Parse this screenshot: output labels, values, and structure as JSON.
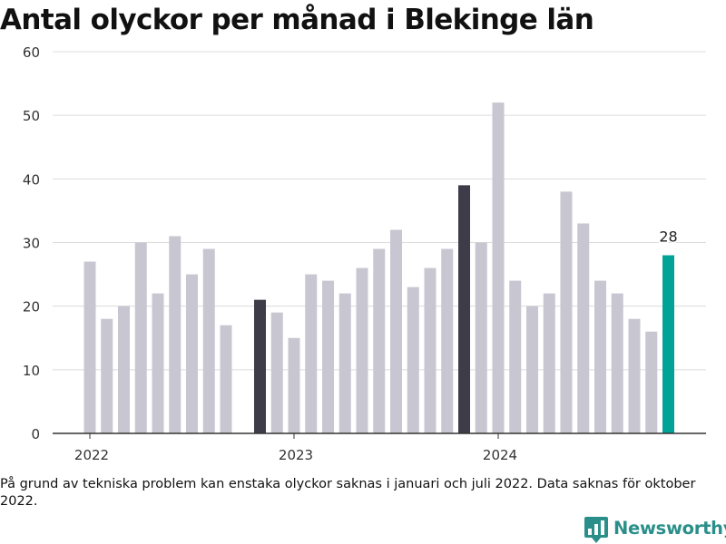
{
  "title": "Antal olyckor per månad i Blekinge län",
  "note": "På grund av tekniska problem kan enstaka olyckor saknas i januari och juli 2022. Data saknas för oktober 2022.",
  "brand": "Newsworthy",
  "colors": {
    "bar_default": "#c8c6d0",
    "bar_highlight": "#3d3c48",
    "bar_latest": "#00a396",
    "grid": "#dcdcdc",
    "brand": "#2a8f8a"
  },
  "chart_data": {
    "type": "bar",
    "categories": [
      "2022-01",
      "2022-02",
      "2022-03",
      "2022-04",
      "2022-05",
      "2022-06",
      "2022-07",
      "2022-08",
      "2022-09",
      "2022-10",
      "2022-11",
      "2022-12",
      "2023-01",
      "2023-02",
      "2023-03",
      "2023-04",
      "2023-05",
      "2023-06",
      "2023-07",
      "2023-08",
      "2023-09",
      "2023-10",
      "2023-11",
      "2023-12",
      "2024-01",
      "2024-02",
      "2024-03",
      "2024-04",
      "2024-05",
      "2024-06",
      "2024-07",
      "2024-08",
      "2024-09",
      "2024-10",
      "2024-11"
    ],
    "values": [
      27,
      18,
      20,
      30,
      22,
      31,
      25,
      29,
      17,
      null,
      21,
      19,
      15,
      25,
      24,
      22,
      26,
      29,
      32,
      23,
      26,
      29,
      39,
      30,
      52,
      24,
      20,
      22,
      38,
      33,
      24,
      22,
      18,
      16,
      28
    ],
    "highlight": [
      "2022-11",
      "2023-11"
    ],
    "latest": "2024-11",
    "latest_label": "28",
    "x_ticks": [
      {
        "label": "2022",
        "at": "2022-01"
      },
      {
        "label": "2023",
        "at": "2023-01"
      },
      {
        "label": "2024",
        "at": "2024-01"
      }
    ],
    "y_ticks": [
      0,
      10,
      20,
      30,
      40,
      50,
      60
    ],
    "ylim": [
      0,
      60
    ],
    "xlabel": "",
    "ylabel": "",
    "grid": true,
    "legend": "none"
  }
}
